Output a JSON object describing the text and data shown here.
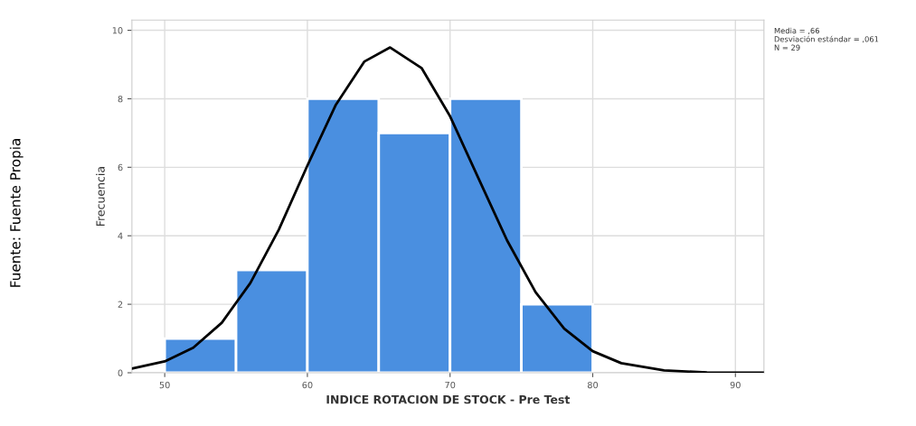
{
  "chart_data": {
    "type": "histogram",
    "xlabel": "INDICE ROTACION DE STOCK - Pre Test",
    "ylabel": "Frecuencia",
    "bins": [
      50,
      55,
      60,
      65,
      70,
      75,
      80
    ],
    "values": [
      1,
      3,
      8,
      7,
      8,
      2
    ],
    "color": "#4a8fe0",
    "series": [
      {
        "type": "line",
        "color": "#000000",
        "x": [
          47.7,
          50,
          52,
          54,
          56,
          58,
          60,
          62,
          64,
          65.8,
          68,
          70,
          72,
          74,
          76,
          78,
          80,
          82,
          85,
          88,
          92
        ],
        "values": [
          0.12,
          0.33,
          0.73,
          1.46,
          2.62,
          4.18,
          6.05,
          7.83,
          9.09,
          9.5,
          8.9,
          7.49,
          5.67,
          3.86,
          2.35,
          1.29,
          0.63,
          0.28,
          0.07,
          0.01,
          0.0
        ]
      }
    ],
    "xlim": [
      47.7,
      92
    ],
    "ylim": [
      0,
      10.3
    ],
    "xticks": [
      50,
      60,
      70,
      80,
      90
    ],
    "yticks": [
      0,
      2,
      4,
      6,
      8,
      10
    ],
    "grid": true,
    "annotations": [
      "Media = ,66\nDesviación estándar = ,061\nN = 29",
      "Fuente: Fuente Propia"
    ]
  }
}
